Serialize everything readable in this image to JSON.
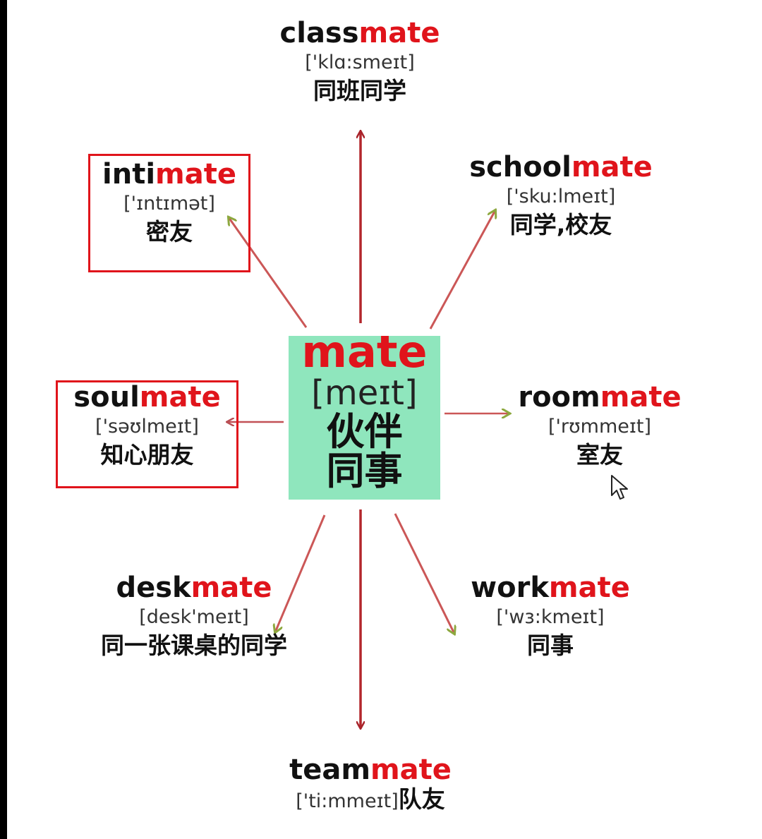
{
  "center": {
    "word": "mate",
    "phonetic": "[meɪt]",
    "meaning_line1": "伙伴",
    "meaning_line2": "同事"
  },
  "colors": {
    "accent_red": "#e0141b",
    "center_box": "#8fe6bd",
    "arrow_red": "#b3262c",
    "arrowhead_green": "#7a9a1e"
  },
  "nodes": {
    "classmate": {
      "stem": "class",
      "suffix": "mate",
      "phonetic": "['klɑ:smeɪt]",
      "meaning": "同班同学"
    },
    "schoolmate": {
      "stem": "school",
      "suffix": "mate",
      "phonetic": "['sku:lmeɪt]",
      "meaning": "同学,校友"
    },
    "intimate": {
      "stem": "inti",
      "suffix": "mate",
      "phonetic": "['ɪntɪmət]",
      "meaning": "密友"
    },
    "soulmate": {
      "stem": "soul",
      "suffix": "mate",
      "phonetic": "['səʊlmeɪt]",
      "meaning": "知心朋友"
    },
    "roommate": {
      "stem": "room",
      "suffix": "mate",
      "phonetic": "['rʊmmeɪt]",
      "meaning": "室友"
    },
    "deskmate": {
      "stem": "desk",
      "suffix": "mate",
      "phonetic": "[desk'meɪt]",
      "meaning": "同一张课桌的同学"
    },
    "workmate": {
      "stem": "work",
      "suffix": "mate",
      "phonetic": "['wɜ:kmeɪt]",
      "meaning": "同事"
    },
    "teammate": {
      "stem": "team",
      "suffix": "mate",
      "phonetic": "['ti:mmeɪt]",
      "meaning": "队友"
    }
  },
  "icons": {
    "cursor": "mouse-pointer-icon"
  }
}
